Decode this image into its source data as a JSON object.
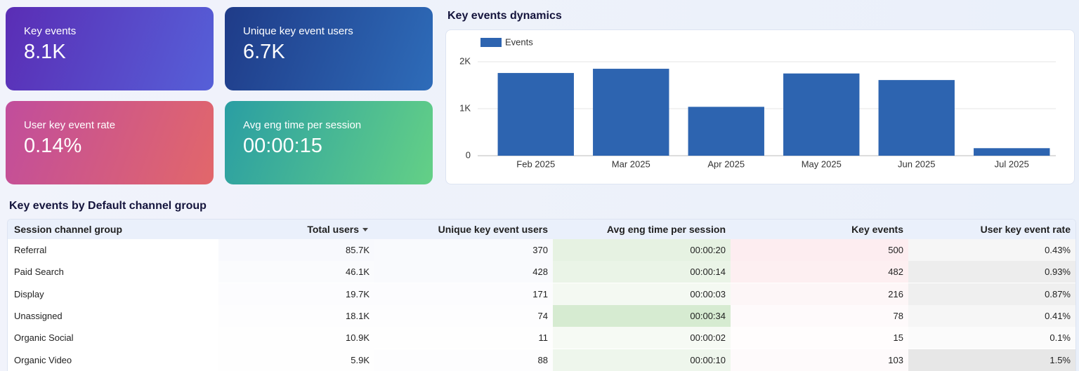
{
  "cards": [
    {
      "label": "Key events",
      "value": "8.1K"
    },
    {
      "label": "Unique key event users",
      "value": "6.7K"
    },
    {
      "label": "User key event rate",
      "value": "0.14%"
    },
    {
      "label": "Avg eng time per session",
      "value": "00:00:15"
    }
  ],
  "chart_data": {
    "type": "bar",
    "title": "Key events dynamics",
    "categories": [
      "Feb 2025",
      "Mar 2025",
      "Apr 2025",
      "May 2025",
      "Jun 2025",
      "Jul 2025"
    ],
    "series": [
      {
        "name": "Events",
        "color": "#2d64b0",
        "values": [
          1760,
          1850,
          1040,
          1750,
          1610,
          160
        ]
      }
    ],
    "ylim": [
      0,
      2000
    ],
    "yticks": [
      0,
      {
        "value": 1000,
        "label": "1K"
      },
      {
        "value": 2000,
        "label": "2K"
      }
    ],
    "grid": true,
    "legend": "top-left"
  },
  "table": {
    "title": "Key events by Default channel group",
    "columns": [
      "Session channel group",
      "Total users",
      "Unique key event users",
      "Avg eng time per session",
      "Key events",
      "User key event rate"
    ],
    "rows": [
      [
        "Referral",
        "85.7K",
        "370",
        "00:00:20",
        "500",
        "0.43%"
      ],
      [
        "Paid Search",
        "46.1K",
        "428",
        "00:00:14",
        "482",
        "0.93%"
      ],
      [
        "Display",
        "19.7K",
        "171",
        "00:00:03",
        "216",
        "0.87%"
      ],
      [
        "Unassigned",
        "18.1K",
        "74",
        "00:00:34",
        "78",
        "0.41%"
      ],
      [
        "Organic Social",
        "10.9K",
        "11",
        "00:00:02",
        "15",
        "0.1%"
      ],
      [
        "Organic Video",
        "5.9K",
        "88",
        "00:00:10",
        "103",
        "1.5%"
      ]
    ]
  }
}
